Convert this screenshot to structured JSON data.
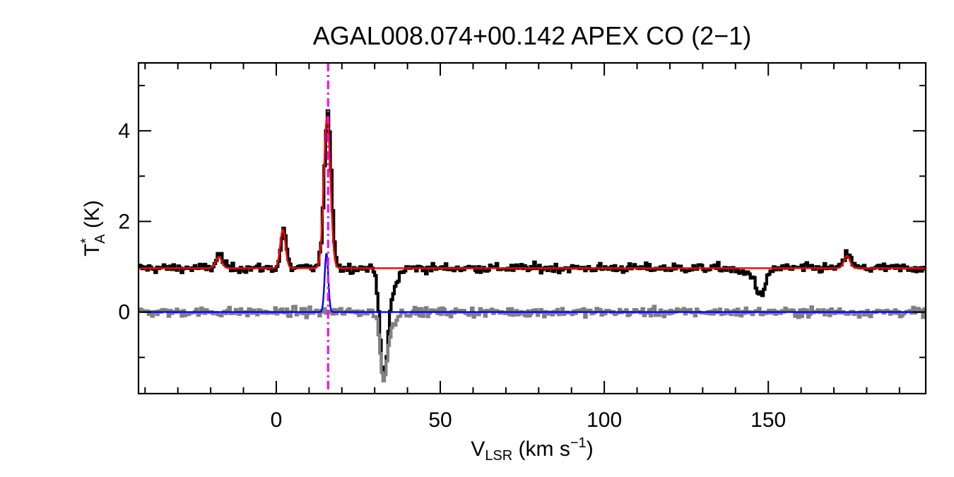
{
  "chart_data": {
    "type": "line",
    "title": "AGAL008.074+00.142  APEX CO (2−1)",
    "xlabel": {
      "base": "V",
      "sub": "LSR",
      "rest": " (km s",
      "sup": "−1",
      "close": ")"
    },
    "ylabel": {
      "base": "T",
      "sup": "*",
      "sub": "A",
      "rest": " (K)"
    },
    "xlim": [
      -42,
      198
    ],
    "ylim": [
      -1.8,
      5.5
    ],
    "xticks": [
      0,
      50,
      100,
      150
    ],
    "yticks": [
      0,
      2,
      4
    ],
    "xtick_labels": [
      "0",
      "50",
      "100",
      "150"
    ],
    "ytick_labels": [
      "0",
      "2",
      "4"
    ],
    "grid": false,
    "velocity_marker": {
      "x": 15.8,
      "color": "#ff00ff",
      "style": "dash-dot"
    },
    "series": [
      {
        "role": "observed",
        "color": "#000000",
        "style": "step",
        "baseline": 0.97,
        "noise": 0.07,
        "components": [
          {
            "center": -17.5,
            "amp": 0.3,
            "sigma": 1.0
          },
          {
            "center": 2.0,
            "amp": 0.85,
            "sigma": 0.8
          },
          {
            "center": 15.5,
            "amp": 3.35,
            "sigma": 1.1
          },
          {
            "center": 32.5,
            "amp": -2.1,
            "sigma": 1.1
          },
          {
            "center": 34.5,
            "amp": -0.6,
            "sigma": 1.8
          },
          {
            "center": 147.5,
            "amp": -0.6,
            "sigma": 1.5
          },
          {
            "center": 142.0,
            "amp": -0.12,
            "sigma": 2.0
          },
          {
            "center": 174.0,
            "amp": 0.33,
            "sigma": 1.0
          }
        ]
      },
      {
        "role": "fit",
        "color": "#ff0000",
        "style": "line",
        "baseline": 0.97,
        "components": [
          {
            "center": -17.5,
            "amp": 0.25,
            "sigma": 0.9
          },
          {
            "center": 2.0,
            "amp": 0.85,
            "sigma": 0.8
          },
          {
            "center": 15.5,
            "amp": 3.35,
            "sigma": 1.0
          },
          {
            "center": 174.0,
            "amp": 0.27,
            "sigma": 0.9
          }
        ]
      },
      {
        "role": "residual",
        "color": "#808080",
        "style": "step",
        "baseline": 0.0,
        "noise": 0.07,
        "components": [
          {
            "center": 32.5,
            "amp": -1.4,
            "sigma": 1.0
          },
          {
            "center": 34.5,
            "amp": -0.3,
            "sigma": 1.5
          }
        ]
      },
      {
        "role": "component-fit",
        "color": "#0000ff",
        "style": "line",
        "baseline": 0.0,
        "components": [
          {
            "center": 15.3,
            "amp": 1.3,
            "sigma": 0.55
          }
        ]
      }
    ]
  }
}
